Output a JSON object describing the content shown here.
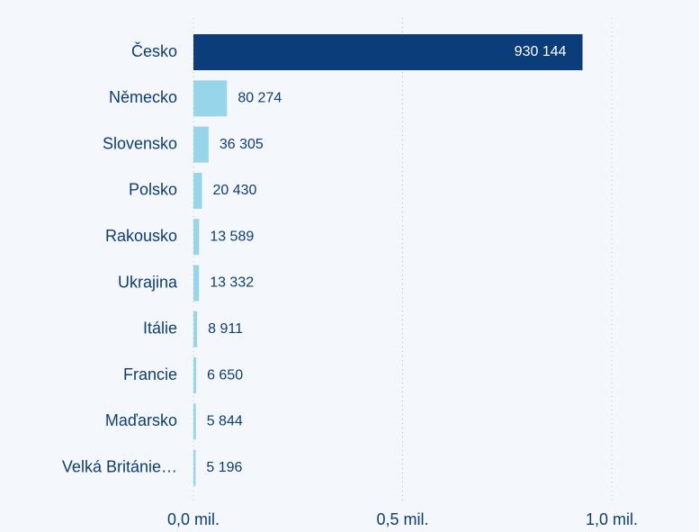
{
  "chart_data": {
    "type": "hbar",
    "categories": [
      "Česko",
      "Německo",
      "Slovensko",
      "Polsko",
      "Rakousko",
      "Ukrajina",
      "Itálie",
      "Francie",
      "Maďarsko",
      "Velká Británie…"
    ],
    "values": [
      930144,
      80274,
      36305,
      20430,
      13589,
      13332,
      8911,
      6650,
      5844,
      5196
    ],
    "value_labels": [
      "930 144",
      "80 274",
      "36 305",
      "20 430",
      "13 589",
      "13 332",
      "8 911",
      "6 650",
      "5 844",
      "5 196"
    ],
    "colors": [
      "#0b3d7a",
      "#96d5ea",
      "#96d5ea",
      "#96d5ea",
      "#96d5ea",
      "#96d5ea",
      "#96d5ea",
      "#96d5ea",
      "#96d5ea",
      "#96d5ea"
    ],
    "xlim": [
      0,
      1000000
    ],
    "xticks": [
      {
        "value": 0,
        "label": "0,0 mil."
      },
      {
        "value": 500000,
        "label": "0,5 mil."
      },
      {
        "value": 1000000,
        "label": "1,0 mil."
      }
    ],
    "grid": true
  }
}
